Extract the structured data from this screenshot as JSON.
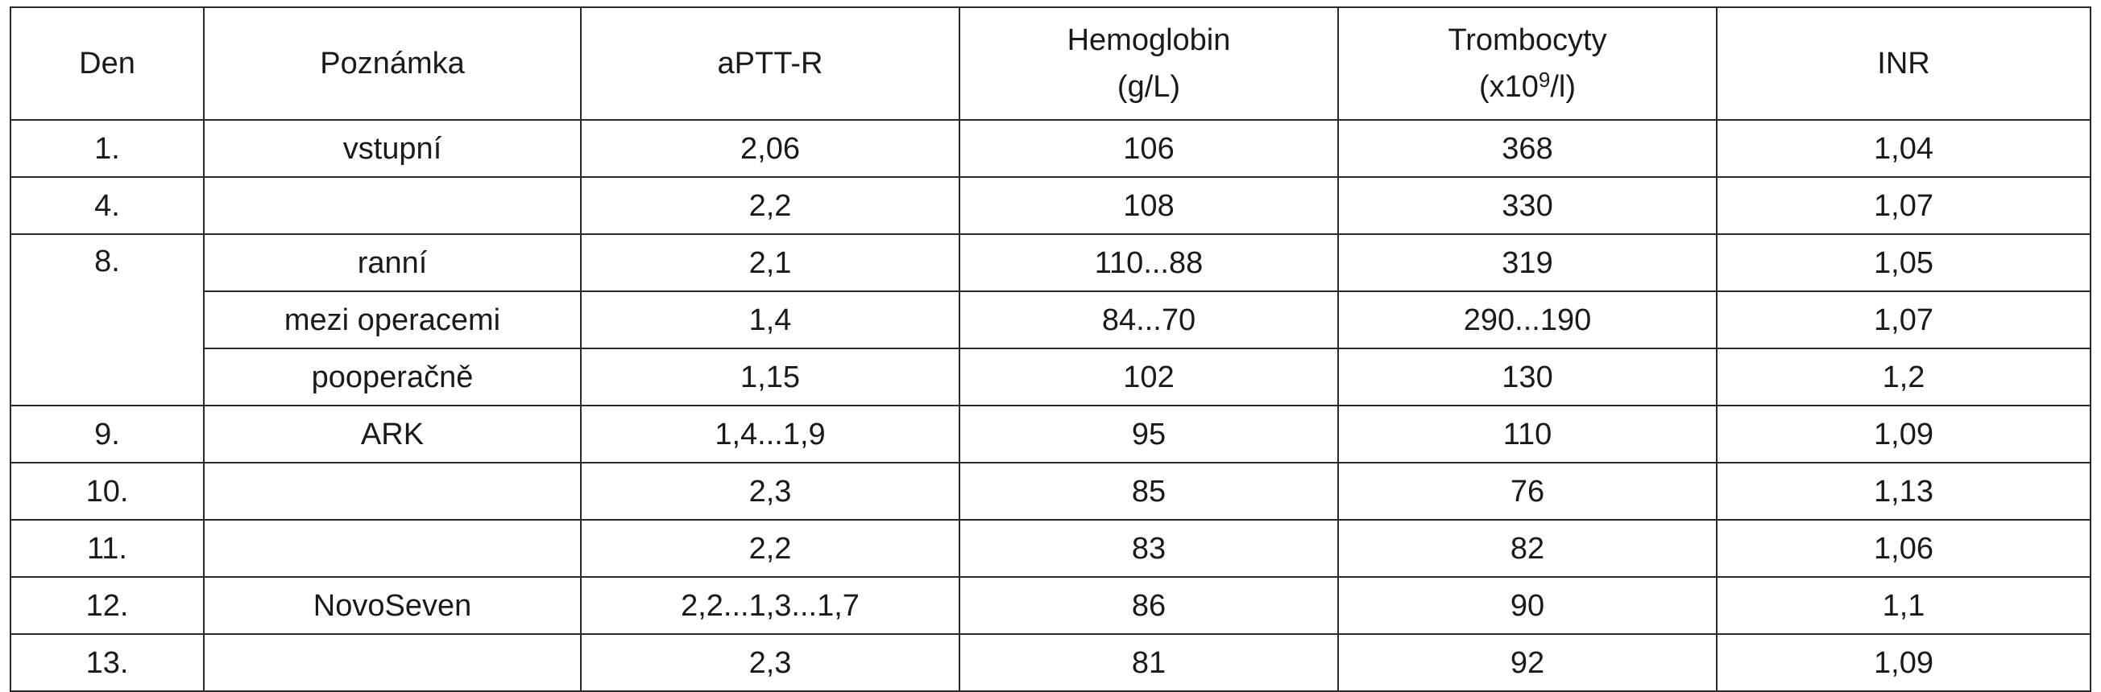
{
  "table": {
    "headers": {
      "den": "Den",
      "poznamka": "Poznámka",
      "aptt": "aPTT-R",
      "hemoglobin_line1": "Hemoglobin",
      "hemoglobin_line2": "(g/L)",
      "trombocyty_line1": "Trombocyty",
      "trombocyty_pre": "(x10",
      "trombocyty_sup": "9",
      "trombocyty_post": "/l)",
      "inr": "INR"
    },
    "rows": [
      {
        "den": "1.",
        "poznamka": "vstupní",
        "aptt": "2,06",
        "hemoglobin": "106",
        "trombocyty": "368",
        "inr": "1,04"
      },
      {
        "den": "4.",
        "poznamka": "",
        "aptt": "2,2",
        "hemoglobin": "108",
        "trombocyty": "330",
        "inr": "1,07"
      },
      {
        "den": "8.",
        "poznamka": "ranní",
        "aptt": "2,1",
        "hemoglobin": "110...88",
        "trombocyty": "319",
        "inr": "1,05"
      },
      {
        "den": "",
        "poznamka": "mezi operacemi",
        "aptt": "1,4",
        "hemoglobin": "84...70",
        "trombocyty": "290...190",
        "inr": "1,07"
      },
      {
        "den": "",
        "poznamka": "pooperačně",
        "aptt": "1,15",
        "hemoglobin": "102",
        "trombocyty": "130",
        "inr": "1,2"
      },
      {
        "den": "9.",
        "poznamka": "ARK",
        "aptt": "1,4...1,9",
        "hemoglobin": "95",
        "trombocyty": "110",
        "inr": "1,09"
      },
      {
        "den": "10.",
        "poznamka": "",
        "aptt": "2,3",
        "hemoglobin": "85",
        "trombocyty": "76",
        "inr": "1,13"
      },
      {
        "den": "11.",
        "poznamka": "",
        "aptt": "2,2",
        "hemoglobin": "83",
        "trombocyty": "82",
        "inr": "1,06"
      },
      {
        "den": "12.",
        "poznamka": "NovoSeven",
        "aptt": "2,2...1,3...1,7",
        "hemoglobin": "86",
        "trombocyty": "90",
        "inr": "1,1"
      },
      {
        "den": "13.",
        "poznamka": "",
        "aptt": "2,3",
        "hemoglobin": "81",
        "trombocyty": "92",
        "inr": "1,09"
      }
    ]
  }
}
